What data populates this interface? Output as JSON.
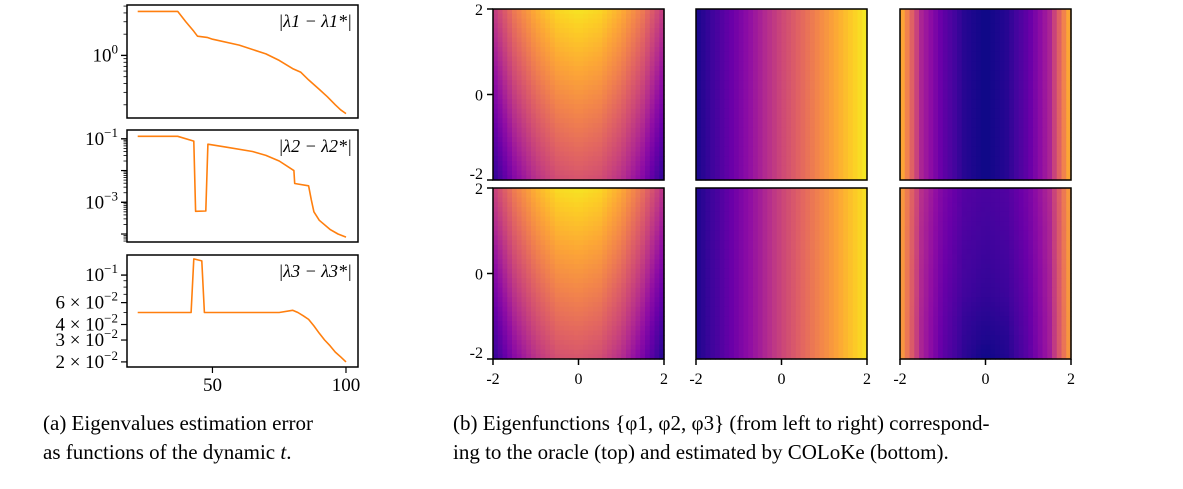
{
  "chart_data": [
    {
      "type": "line",
      "panel": "a",
      "yscale": "log",
      "xlim": [
        18,
        104.5
      ],
      "ylim": [
        0.13,
        5.18
      ],
      "yticks": [
        {
          "value": 1,
          "label": "10",
          "exp": "0"
        }
      ],
      "xticks": [],
      "legend": "|λ1 − λ1*|",
      "legend_placement": "top-right",
      "color": "#ff7f0e",
      "x": [
        22,
        37,
        40,
        43,
        44.4,
        48,
        50,
        60,
        70,
        75,
        80,
        83,
        86,
        90,
        93,
        96,
        98,
        100
      ],
      "y": [
        4.2,
        4.2,
        3.0,
        2.2,
        1.87,
        1.8,
        1.7,
        1.4,
        1.05,
        0.85,
        0.65,
        0.58,
        0.45,
        0.33,
        0.26,
        0.2,
        0.17,
        0.15
      ]
    },
    {
      "type": "line",
      "panel": "a",
      "yscale": "log",
      "xlim": [
        18,
        104.5
      ],
      "ylim": [
        5.6e-05,
        0.19
      ],
      "yticks": [
        {
          "value": 0.1,
          "label": "10",
          "exp": "−1"
        },
        {
          "value": 0.001,
          "label": "10",
          "exp": "−3"
        }
      ],
      "xticks": [],
      "legend": "|λ2 − λ2*|",
      "legend_placement": "top-right",
      "color": "#ff7f0e",
      "x": [
        22,
        37,
        43,
        43.7,
        47.5,
        48.3,
        55,
        65,
        70,
        75,
        80.5,
        80.8,
        86,
        87,
        88,
        90,
        94,
        97,
        100
      ],
      "y": [
        0.12,
        0.12,
        0.085,
        0.00052,
        0.00053,
        0.068,
        0.055,
        0.04,
        0.03,
        0.02,
        0.01,
        0.0039,
        0.0033,
        0.0012,
        0.0005,
        0.00027,
        0.00014,
        0.0001,
        8e-05
      ]
    },
    {
      "type": "line",
      "panel": "a",
      "yscale": "log",
      "xlim": [
        18,
        104.5
      ],
      "ylim": [
        0.0182,
        0.145
      ],
      "yticks": [
        {
          "value": 0.1,
          "label": "10",
          "exp": "−1"
        },
        {
          "value": 0.06,
          "label": "6 × 10",
          "exp": "−2"
        },
        {
          "value": 0.04,
          "label": "4 × 10",
          "exp": "−2"
        },
        {
          "value": 0.03,
          "label": "3 × 10",
          "exp": "−2"
        },
        {
          "value": 0.02,
          "label": "2 × 10",
          "exp": "−2"
        }
      ],
      "xticks": [
        {
          "value": 50,
          "label": "50"
        },
        {
          "value": 100,
          "label": "100"
        }
      ],
      "legend": "|λ3 − λ3*|",
      "legend_placement": "top-right",
      "color": "#ff7f0e",
      "x": [
        22,
        42,
        43,
        46,
        47,
        75,
        80,
        82,
        84,
        86,
        88,
        90,
        92,
        94,
        96,
        98,
        100
      ],
      "y": [
        0.05,
        0.05,
        0.135,
        0.13,
        0.05,
        0.05,
        0.052,
        0.05,
        0.047,
        0.044,
        0.039,
        0.034,
        0.03,
        0.027,
        0.024,
        0.022,
        0.02
      ]
    },
    {
      "type": "heatmap",
      "panel": "b",
      "colormap": "plasma",
      "xlim": [
        -2,
        2
      ],
      "ylim": [
        -2,
        2
      ],
      "xticks": [
        "-2",
        "0",
        "2"
      ],
      "yticks": [
        "2",
        "0",
        "-2"
      ],
      "grid_axes": "rows y = 2 … -2, cols x = -2 … 2 (step 0.5)",
      "maps": [
        {
          "row": "oracle",
          "name": "φ1",
          "z": [
            [
              0.45,
              0.67,
              0.82,
              0.92,
              0.95,
              0.92,
              0.82,
              0.67,
              0.45
            ],
            [
              0.4,
              0.62,
              0.77,
              0.87,
              0.9,
              0.87,
              0.77,
              0.62,
              0.4
            ],
            [
              0.35,
              0.57,
              0.72,
              0.82,
              0.85,
              0.82,
              0.72,
              0.57,
              0.35
            ],
            [
              0.3,
              0.52,
              0.67,
              0.77,
              0.8,
              0.77,
              0.67,
              0.52,
              0.3
            ],
            [
              0.25,
              0.47,
              0.62,
              0.72,
              0.75,
              0.72,
              0.62,
              0.47,
              0.25
            ],
            [
              0.2,
              0.42,
              0.57,
              0.67,
              0.7,
              0.67,
              0.57,
              0.42,
              0.2
            ],
            [
              0.15,
              0.37,
              0.52,
              0.62,
              0.65,
              0.62,
              0.52,
              0.37,
              0.15
            ],
            [
              0.1,
              0.32,
              0.47,
              0.57,
              0.6,
              0.57,
              0.47,
              0.32,
              0.1
            ],
            [
              0.05,
              0.27,
              0.42,
              0.52,
              0.55,
              0.52,
              0.42,
              0.27,
              0.05
            ]
          ]
        },
        {
          "row": "oracle",
          "name": "φ2",
          "z": [
            [
              0.02,
              0.12,
              0.24,
              0.37,
              0.5,
              0.62,
              0.74,
              0.86,
              0.97
            ],
            [
              0.02,
              0.12,
              0.24,
              0.37,
              0.5,
              0.62,
              0.74,
              0.86,
              0.97
            ],
            [
              0.02,
              0.12,
              0.24,
              0.37,
              0.5,
              0.62,
              0.74,
              0.86,
              0.97
            ],
            [
              0.02,
              0.12,
              0.24,
              0.37,
              0.5,
              0.62,
              0.74,
              0.86,
              0.97
            ],
            [
              0.02,
              0.12,
              0.24,
              0.37,
              0.5,
              0.62,
              0.74,
              0.86,
              0.97
            ],
            [
              0.02,
              0.12,
              0.24,
              0.37,
              0.5,
              0.62,
              0.74,
              0.86,
              0.97
            ],
            [
              0.02,
              0.12,
              0.24,
              0.37,
              0.5,
              0.62,
              0.74,
              0.86,
              0.97
            ],
            [
              0.02,
              0.12,
              0.24,
              0.37,
              0.5,
              0.62,
              0.74,
              0.86,
              0.97
            ],
            [
              0.02,
              0.12,
              0.24,
              0.37,
              0.5,
              0.62,
              0.74,
              0.86,
              0.97
            ]
          ]
        },
        {
          "row": "oracle",
          "name": "φ3",
          "z": [
            [
              0.85,
              0.38,
              0.18,
              0.05,
              0.0,
              0.05,
              0.18,
              0.38,
              0.85
            ],
            [
              0.85,
              0.38,
              0.18,
              0.05,
              0.0,
              0.05,
              0.18,
              0.38,
              0.85
            ],
            [
              0.85,
              0.38,
              0.18,
              0.05,
              0.0,
              0.05,
              0.18,
              0.38,
              0.85
            ],
            [
              0.85,
              0.38,
              0.18,
              0.05,
              0.0,
              0.05,
              0.18,
              0.38,
              0.85
            ],
            [
              0.85,
              0.38,
              0.18,
              0.05,
              0.0,
              0.05,
              0.18,
              0.38,
              0.85
            ],
            [
              0.85,
              0.38,
              0.18,
              0.05,
              0.0,
              0.05,
              0.18,
              0.38,
              0.85
            ],
            [
              0.85,
              0.38,
              0.18,
              0.05,
              0.0,
              0.05,
              0.18,
              0.38,
              0.85
            ],
            [
              0.85,
              0.38,
              0.18,
              0.05,
              0.0,
              0.05,
              0.18,
              0.38,
              0.85
            ],
            [
              0.85,
              0.38,
              0.18,
              0.05,
              0.0,
              0.05,
              0.18,
              0.38,
              0.85
            ]
          ]
        },
        {
          "row": "estimated",
          "name": "φ1",
          "z": [
            [
              0.47,
              0.68,
              0.83,
              0.93,
              0.95,
              0.92,
              0.81,
              0.64,
              0.42
            ],
            [
              0.42,
              0.63,
              0.78,
              0.88,
              0.9,
              0.87,
              0.76,
              0.59,
              0.37
            ],
            [
              0.37,
              0.58,
              0.73,
              0.83,
              0.85,
              0.82,
              0.71,
              0.54,
              0.32
            ],
            [
              0.31,
              0.53,
              0.68,
              0.78,
              0.8,
              0.77,
              0.66,
              0.49,
              0.27
            ],
            [
              0.26,
              0.48,
              0.63,
              0.73,
              0.75,
              0.72,
              0.61,
              0.44,
              0.22
            ],
            [
              0.21,
              0.43,
              0.58,
              0.68,
              0.7,
              0.67,
              0.56,
              0.39,
              0.17
            ],
            [
              0.16,
              0.38,
              0.53,
              0.63,
              0.65,
              0.62,
              0.51,
              0.34,
              0.12
            ],
            [
              0.11,
              0.33,
              0.48,
              0.58,
              0.6,
              0.57,
              0.46,
              0.29,
              0.07
            ],
            [
              0.06,
              0.28,
              0.43,
              0.53,
              0.55,
              0.52,
              0.41,
              0.24,
              0.03
            ]
          ]
        },
        {
          "row": "estimated",
          "name": "φ2",
          "z": [
            [
              0.03,
              0.12,
              0.24,
              0.36,
              0.49,
              0.61,
              0.72,
              0.84,
              0.95
            ],
            [
              0.03,
              0.12,
              0.24,
              0.36,
              0.49,
              0.61,
              0.72,
              0.84,
              0.95
            ],
            [
              0.03,
              0.12,
              0.24,
              0.36,
              0.49,
              0.61,
              0.72,
              0.84,
              0.95
            ],
            [
              0.03,
              0.12,
              0.24,
              0.36,
              0.49,
              0.61,
              0.72,
              0.84,
              0.95
            ],
            [
              0.03,
              0.12,
              0.24,
              0.36,
              0.49,
              0.61,
              0.72,
              0.84,
              0.95
            ],
            [
              0.03,
              0.12,
              0.24,
              0.36,
              0.49,
              0.61,
              0.72,
              0.84,
              0.95
            ],
            [
              0.03,
              0.12,
              0.24,
              0.36,
              0.49,
              0.61,
              0.72,
              0.84,
              0.95
            ],
            [
              0.03,
              0.12,
              0.24,
              0.36,
              0.49,
              0.61,
              0.72,
              0.84,
              0.95
            ],
            [
              0.03,
              0.12,
              0.24,
              0.36,
              0.49,
              0.61,
              0.72,
              0.84,
              0.95
            ]
          ]
        },
        {
          "row": "estimated",
          "name": "φ3",
          "z": [
            [
              0.8,
              0.42,
              0.25,
              0.15,
              0.12,
              0.14,
              0.24,
              0.4,
              0.8
            ],
            [
              0.8,
              0.41,
              0.24,
              0.14,
              0.11,
              0.13,
              0.23,
              0.39,
              0.8
            ],
            [
              0.8,
              0.4,
              0.23,
              0.13,
              0.1,
              0.12,
              0.22,
              0.38,
              0.8
            ],
            [
              0.8,
              0.4,
              0.22,
              0.12,
              0.09,
              0.11,
              0.21,
              0.38,
              0.8
            ],
            [
              0.8,
              0.39,
              0.21,
              0.11,
              0.08,
              0.1,
              0.2,
              0.37,
              0.8
            ],
            [
              0.8,
              0.39,
              0.2,
              0.1,
              0.07,
              0.09,
              0.19,
              0.37,
              0.8
            ],
            [
              0.8,
              0.38,
              0.19,
              0.08,
              0.05,
              0.07,
              0.18,
              0.36,
              0.8
            ],
            [
              0.8,
              0.38,
              0.18,
              0.07,
              0.03,
              0.05,
              0.17,
              0.36,
              0.8
            ],
            [
              0.8,
              0.38,
              0.17,
              0.06,
              0.0,
              0.04,
              0.16,
              0.35,
              0.8
            ]
          ]
        }
      ]
    }
  ],
  "captions": {
    "a_line1": "(a) Eigenvalues estimation error",
    "a_line2_prefix": "as functions of the dynamic ",
    "a_var": "t",
    "a_end": ".",
    "b_line1": "(b) Eigenfunctions {φ1, φ2, φ3} (from left to right) correspond-",
    "b_line2": "ing to the oracle (top) and estimated by COLoKe (bottom)."
  }
}
